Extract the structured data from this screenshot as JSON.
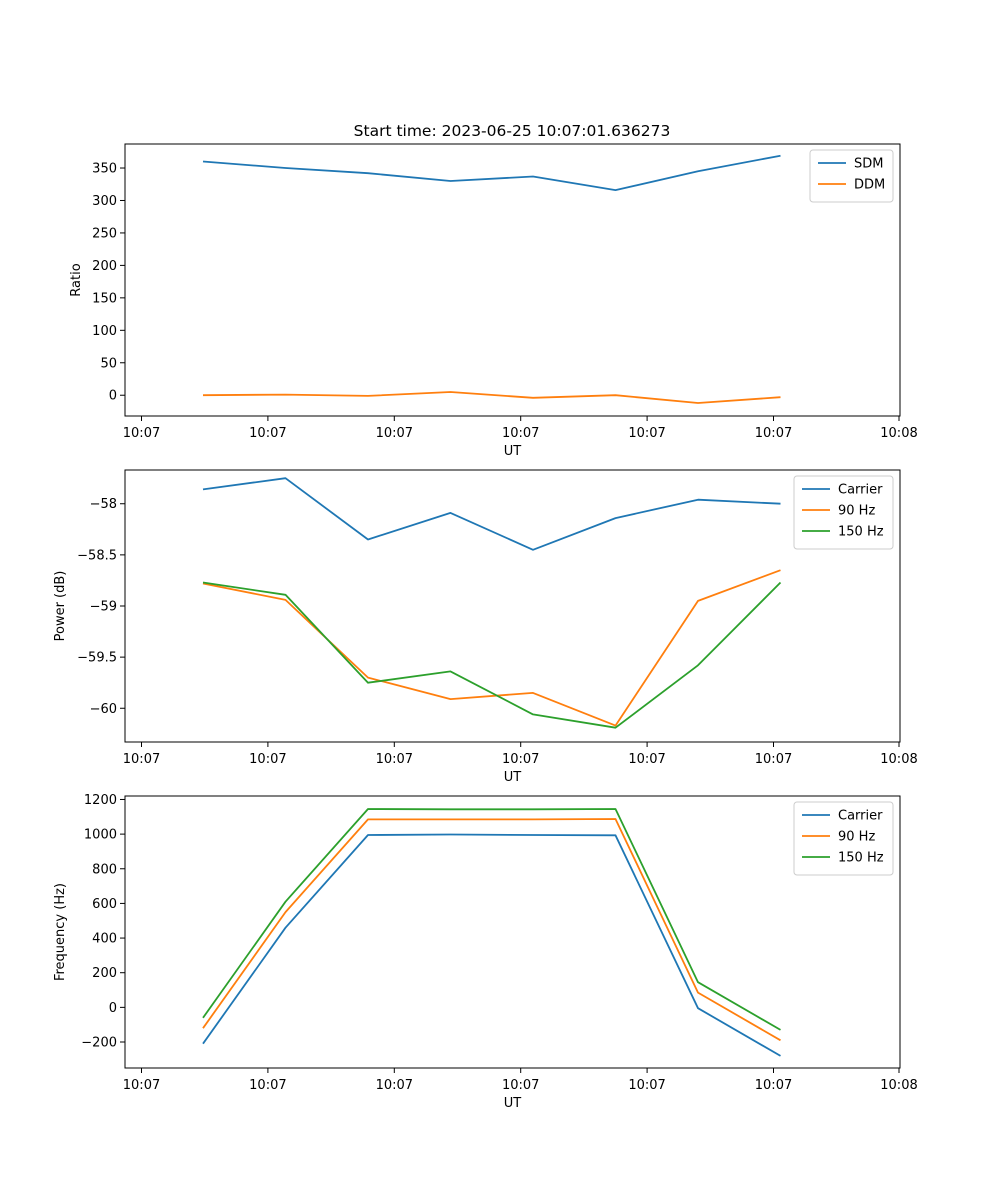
{
  "figure": {
    "title": "Start time: 2023-06-25 10:07:01.636273"
  },
  "chart_data": [
    {
      "type": "line",
      "xlabel": "UT",
      "ylabel": "Ratio",
      "x_tick_labels": [
        "10:07",
        "10:07",
        "10:07",
        "10:07",
        "10:07",
        "10:07",
        "10:08"
      ],
      "yticks": [
        0,
        50,
        100,
        150,
        200,
        250,
        300,
        350
      ],
      "ylim": [
        -32,
        387
      ],
      "legend_position": "top-right",
      "grid": false,
      "series": [
        {
          "name": "SDM",
          "color": "#1f77b4",
          "values": [
            360,
            350,
            342,
            330,
            337,
            316,
            345,
            369
          ]
        },
        {
          "name": "DDM",
          "color": "#ff7f0e",
          "values": [
            0,
            1,
            -1,
            5,
            -4,
            0,
            -12,
            -3
          ]
        }
      ]
    },
    {
      "type": "line",
      "xlabel": "UT",
      "ylabel": "Power (dB)",
      "x_tick_labels": [
        "10:07",
        "10:07",
        "10:07",
        "10:07",
        "10:07",
        "10:07",
        "10:08"
      ],
      "yticks": [
        -58.0,
        -58.5,
        -59.0,
        -59.5,
        -60.0
      ],
      "ylim": [
        -60.33,
        -57.67
      ],
      "legend_position": "top-right",
      "grid": false,
      "series": [
        {
          "name": "Carrier",
          "color": "#1f77b4",
          "values": [
            -57.86,
            -57.75,
            -58.35,
            -58.09,
            -58.45,
            -58.14,
            -57.96,
            -58.0
          ]
        },
        {
          "name": "90 Hz",
          "color": "#ff7f0e",
          "values": [
            -58.78,
            -58.94,
            -59.7,
            -59.91,
            -59.85,
            -60.17,
            -58.95,
            -58.65
          ]
        },
        {
          "name": "150 Hz",
          "color": "#2ca02c",
          "values": [
            -58.77,
            -58.89,
            -59.75,
            -59.64,
            -60.06,
            -60.19,
            -59.58,
            -58.77
          ]
        }
      ]
    },
    {
      "type": "line",
      "xlabel": "UT",
      "ylabel": "Frequency (Hz)",
      "x_tick_labels": [
        "10:07",
        "10:07",
        "10:07",
        "10:07",
        "10:07",
        "10:07",
        "10:08"
      ],
      "yticks": [
        -200,
        0,
        200,
        400,
        600,
        800,
        1000,
        1200
      ],
      "ylim": [
        -350,
        1220
      ],
      "legend_position": "top-right",
      "grid": false,
      "series": [
        {
          "name": "Carrier",
          "color": "#1f77b4",
          "values": [
            -210,
            460,
            995,
            998,
            995,
            993,
            -5,
            -280
          ]
        },
        {
          "name": "90 Hz",
          "color": "#ff7f0e",
          "values": [
            -120,
            550,
            1085,
            1085,
            1085,
            1087,
            85,
            -190
          ]
        },
        {
          "name": "150 Hz",
          "color": "#2ca02c",
          "values": [
            -60,
            610,
            1145,
            1143,
            1143,
            1145,
            145,
            -130
          ]
        }
      ]
    }
  ]
}
